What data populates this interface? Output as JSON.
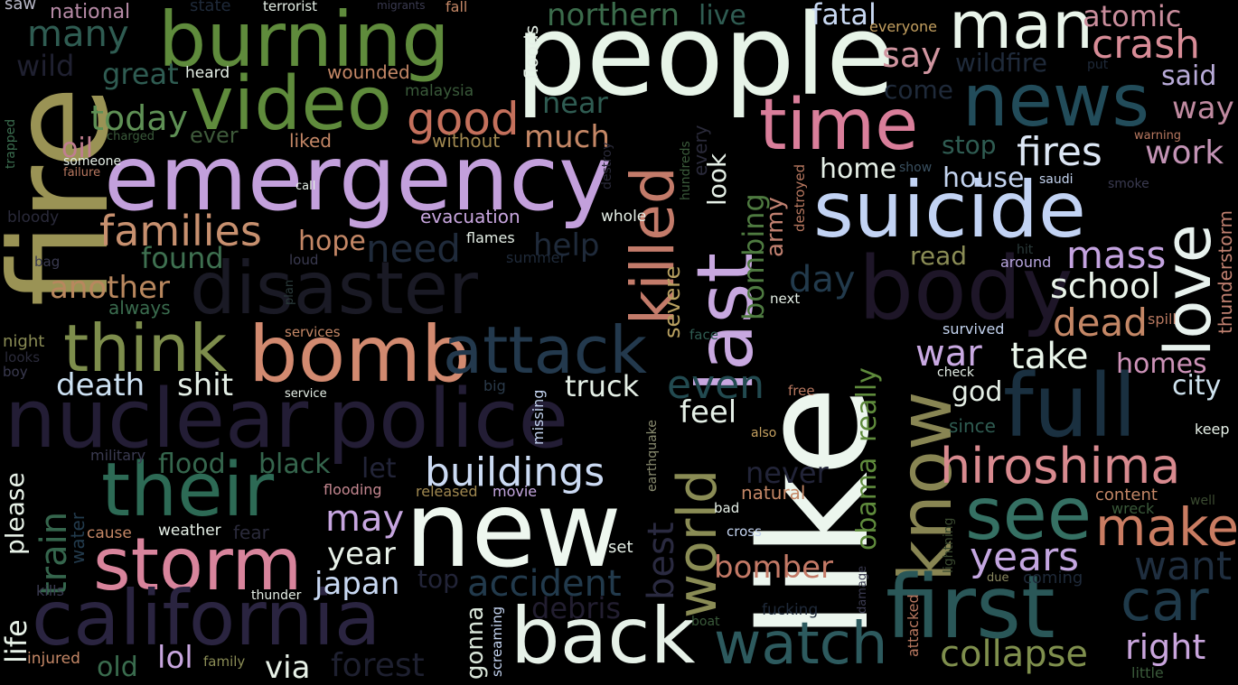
{
  "title": "",
  "palette": {
    "background": "#000000"
  },
  "words": [
    {
      "text": "fire",
      "color": "#9a9355"
    },
    {
      "text": "burning",
      "color": "#5f8b3c"
    },
    {
      "text": "people",
      "color": "#e7f4e8"
    },
    {
      "text": "man",
      "color": "#e9f4ea"
    },
    {
      "text": "atomic",
      "color": "#c98d9c"
    },
    {
      "text": "crash",
      "color": "#d88c97"
    },
    {
      "text": "said",
      "color": "#b9abd9"
    },
    {
      "text": "video",
      "color": "#5f8b3c"
    },
    {
      "text": "emergency",
      "color": "#c3a0dc"
    },
    {
      "text": "news",
      "color": "#224c5a"
    },
    {
      "text": "time",
      "color": "#d97e9a"
    },
    {
      "text": "suicide",
      "color": "#c2d3f4"
    },
    {
      "text": "love",
      "color": "#e8f2ee"
    },
    {
      "text": "disaster",
      "color": "#1a1a25"
    },
    {
      "text": "body",
      "color": "#1e1628"
    },
    {
      "text": "nuclear",
      "color": "#231d35"
    },
    {
      "text": "police",
      "color": "#231d35"
    },
    {
      "text": "like",
      "color": "#ecf6ee"
    },
    {
      "text": "full",
      "color": "#1a3040"
    },
    {
      "text": "know",
      "color": "#888553"
    },
    {
      "text": "hiroshima",
      "color": "#d88a8f"
    },
    {
      "text": "their",
      "color": "#2d6a55"
    },
    {
      "text": "new",
      "color": "#eef7ef"
    },
    {
      "text": "storm",
      "color": "#d8849c"
    },
    {
      "text": "california",
      "color": "#2a2440"
    },
    {
      "text": "back",
      "color": "#e6f1e8"
    },
    {
      "text": "first",
      "color": "#2a5758"
    },
    {
      "text": "see",
      "color": "#357063"
    },
    {
      "text": "make",
      "color": "#c97c62"
    },
    {
      "text": "car",
      "color": "#1f3a4a"
    },
    {
      "text": "bomb",
      "color": "#d28a70"
    },
    {
      "text": "attack",
      "color": "#23394d"
    },
    {
      "text": "think",
      "color": "#7d8d4c"
    },
    {
      "text": "watch",
      "color": "#2d5a5e"
    },
    {
      "text": "last",
      "color": "#c8a8e0"
    },
    {
      "text": "killed",
      "color": "#c37b6a"
    },
    {
      "text": "world",
      "color": "#8a8c55"
    },
    {
      "text": "good",
      "color": "#c4705c"
    },
    {
      "text": "families",
      "color": "#c7906f"
    },
    {
      "text": "today",
      "color": "#5f9055"
    },
    {
      "text": "fires",
      "color": "#dde7f5"
    },
    {
      "text": "work",
      "color": "#c393b5"
    },
    {
      "text": "mass",
      "color": "#c4a3e0"
    },
    {
      "text": "school",
      "color": "#eaf4ea"
    },
    {
      "text": "dead",
      "color": "#c48766"
    },
    {
      "text": "war",
      "color": "#c9a9e2"
    },
    {
      "text": "take",
      "color": "#e9f5ea"
    },
    {
      "text": "homes",
      "color": "#cd92b8"
    },
    {
      "text": "city",
      "color": "#cfe3ef"
    },
    {
      "text": "death",
      "color": "#cde1f2"
    },
    {
      "text": "shit",
      "color": "#e4efe6"
    },
    {
      "text": "buildings",
      "color": "#cbdaf3"
    },
    {
      "text": "truck",
      "color": "#e4efe6"
    },
    {
      "text": "feel",
      "color": "#e4efe6"
    },
    {
      "text": "even",
      "color": "#224a50"
    },
    {
      "text": "years",
      "color": "#c4a6e0"
    },
    {
      "text": "want",
      "color": "#1f2e3f"
    },
    {
      "text": "right",
      "color": "#c9a5dd"
    },
    {
      "text": "collapse",
      "color": "#7f8f4d"
    },
    {
      "text": "bomber",
      "color": "#c37966"
    },
    {
      "text": "accident",
      "color": "#223a4c"
    },
    {
      "text": "japan",
      "color": "#c8d8f2"
    },
    {
      "text": "year",
      "color": "#e8f1e8"
    },
    {
      "text": "may",
      "color": "#c7a6e0"
    },
    {
      "text": "train",
      "color": "#35664d"
    },
    {
      "text": "please",
      "color": "#e8f2e8"
    },
    {
      "text": "life",
      "color": "#e8f2e8"
    },
    {
      "text": "forest",
      "color": "#1e2030"
    },
    {
      "text": "via",
      "color": "#e8f2e8"
    },
    {
      "text": "lol",
      "color": "#c8a6df"
    },
    {
      "text": "old",
      "color": "#3a6c4e"
    },
    {
      "text": "gonna",
      "color": "#d9e5d9"
    },
    {
      "text": "debris",
      "color": "#221e30"
    },
    {
      "text": "top",
      "color": "#222438"
    },
    {
      "text": "flood",
      "color": "#35664d"
    },
    {
      "text": "black",
      "color": "#35664d"
    },
    {
      "text": "let",
      "color": "#222438"
    },
    {
      "text": "never",
      "color": "#222438"
    },
    {
      "text": "best",
      "color": "#2a2a40"
    },
    {
      "text": "obama",
      "color": "#5f8b3c"
    },
    {
      "text": "really",
      "color": "#5f8b3c"
    },
    {
      "text": "severe",
      "color": "#b8a060"
    },
    {
      "text": "bombing",
      "color": "#4e7a40"
    },
    {
      "text": "army",
      "color": "#c08070"
    },
    {
      "text": "day",
      "color": "#223a4c"
    },
    {
      "text": "god",
      "color": "#e5efe6"
    },
    {
      "text": "look",
      "color": "#e5efe6"
    },
    {
      "text": "hope",
      "color": "#c48766"
    },
    {
      "text": "found",
      "color": "#3e7050"
    },
    {
      "text": "another",
      "color": "#b8875e"
    },
    {
      "text": "need",
      "color": "#1f2a3a"
    },
    {
      "text": "help",
      "color": "#1f2a3a"
    },
    {
      "text": "much",
      "color": "#c48766"
    },
    {
      "text": "near",
      "color": "#2f5c52"
    },
    {
      "text": "northern",
      "color": "#3b6b4b"
    },
    {
      "text": "live",
      "color": "#2f5c52"
    },
    {
      "text": "fatal",
      "color": "#c8d8f2"
    },
    {
      "text": "say",
      "color": "#d095a0"
    },
    {
      "text": "wildfire",
      "color": "#1f2a3a"
    },
    {
      "text": "come",
      "color": "#1f2a3a"
    },
    {
      "text": "way",
      "color": "#c08aa0"
    },
    {
      "text": "stop",
      "color": "#2f5c52"
    },
    {
      "text": "home",
      "color": "#e5efe6"
    },
    {
      "text": "house",
      "color": "#c3d3ef"
    },
    {
      "text": "read",
      "color": "#8a8c55"
    },
    {
      "text": "thunderstorm",
      "color": "#c08070"
    },
    {
      "text": "many",
      "color": "#2f5c52"
    },
    {
      "text": "great",
      "color": "#2f5c52"
    },
    {
      "text": "wild",
      "color": "#1f2030"
    },
    {
      "text": "oil",
      "color": "#c07e90"
    },
    {
      "text": "ever",
      "color": "#3e5a3a"
    },
    {
      "text": "evacuation",
      "color": "#c8a6df"
    },
    {
      "text": "flames",
      "color": "#e5efe6"
    },
    {
      "text": "whole",
      "color": "#e5efe6"
    },
    {
      "text": "liked",
      "color": "#c48766"
    },
    {
      "text": "without",
      "color": "#a08850"
    },
    {
      "text": "malaysia",
      "color": "#3a5a3a"
    },
    {
      "text": "wounded",
      "color": "#c48766"
    },
    {
      "text": "heard",
      "color": "#e5efe6"
    },
    {
      "text": "floods",
      "color": "#e5efe6"
    },
    {
      "text": "national",
      "color": "#b68aa6"
    },
    {
      "text": "saw",
      "color": "#b8b8c8"
    },
    {
      "text": "state",
      "color": "#1f2a3a"
    },
    {
      "text": "terrorist",
      "color": "#e5efe6"
    },
    {
      "text": "migrants",
      "color": "#3a3a50"
    },
    {
      "text": "fall",
      "color": "#c48766"
    },
    {
      "text": "everyone",
      "color": "#c4a060"
    },
    {
      "text": "put",
      "color": "#1f2a3a"
    },
    {
      "text": "warning",
      "color": "#b87860"
    },
    {
      "text": "smoke",
      "color": "#3a3a50"
    },
    {
      "text": "saudi",
      "color": "#c3d3ef"
    },
    {
      "text": "show",
      "color": "#3a5060"
    },
    {
      "text": "hit",
      "color": "#2a3a3a"
    },
    {
      "text": "around",
      "color": "#b8a6df"
    },
    {
      "text": "spill",
      "color": "#b87860"
    },
    {
      "text": "survived",
      "color": "#c3d3ef"
    },
    {
      "text": "check",
      "color": "#e5efe6"
    },
    {
      "text": "since",
      "color": "#2f5c52"
    },
    {
      "text": "keep",
      "color": "#e5efe6"
    },
    {
      "text": "content",
      "color": "#c48766"
    },
    {
      "text": "well",
      "color": "#3a4a30"
    },
    {
      "text": "wreck",
      "color": "#3a5a3a"
    },
    {
      "text": "coming",
      "color": "#1f2a3a"
    },
    {
      "text": "little",
      "color": "#3a5a3a"
    },
    {
      "text": "due",
      "color": "#8a8860"
    },
    {
      "text": "lightning",
      "color": "#3a4a30"
    },
    {
      "text": "damage",
      "color": "#3a3a50"
    },
    {
      "text": "attacked",
      "color": "#b87860"
    },
    {
      "text": "destroyed",
      "color": "#b87860"
    },
    {
      "text": "next",
      "color": "#e5efe6"
    },
    {
      "text": "natural",
      "color": "#c48766"
    },
    {
      "text": "cross",
      "color": "#c3d3ef"
    },
    {
      "text": "bad",
      "color": "#e5efe6"
    },
    {
      "text": "boat",
      "color": "#3a5a3a"
    },
    {
      "text": "fucking",
      "color": "#1f2a3a"
    },
    {
      "text": "also",
      "color": "#c4a060"
    },
    {
      "text": "free",
      "color": "#b87860"
    },
    {
      "text": "face",
      "color": "#2f5c52"
    },
    {
      "text": "every",
      "color": "#2a2a3a"
    },
    {
      "text": "hundreds",
      "color": "#3a5a3a"
    },
    {
      "text": "destroy",
      "color": "#2a2a3a"
    },
    {
      "text": "earthquake",
      "color": "#8a8c70"
    },
    {
      "text": "screaming",
      "color": "#c3d3ef"
    },
    {
      "text": "missing",
      "color": "#c3d3ef"
    },
    {
      "text": "big",
      "color": "#2a3a4a"
    },
    {
      "text": "released",
      "color": "#a08850"
    },
    {
      "text": "movie",
      "color": "#c4a6df"
    },
    {
      "text": "flooding",
      "color": "#c48790"
    },
    {
      "text": "weather",
      "color": "#e5efe6"
    },
    {
      "text": "cause",
      "color": "#c48766"
    },
    {
      "text": "fear",
      "color": "#2a2a3a"
    },
    {
      "text": "thunder",
      "color": "#e5efe6"
    },
    {
      "text": "set",
      "color": "#e5efe6"
    },
    {
      "text": "family",
      "color": "#8a8c55"
    },
    {
      "text": "injured",
      "color": "#c48766"
    },
    {
      "text": "water",
      "color": "#223a4c"
    },
    {
      "text": "military",
      "color": "#3a3a50"
    },
    {
      "text": "kills",
      "color": "#3a3a50"
    },
    {
      "text": "service",
      "color": "#e5efe6"
    },
    {
      "text": "services",
      "color": "#c48766"
    },
    {
      "text": "plan",
      "color": "#2a3a3a"
    },
    {
      "text": "summer",
      "color": "#1f2a3a"
    },
    {
      "text": "loud",
      "color": "#3a3a50"
    },
    {
      "text": "always",
      "color": "#3a6c4e"
    },
    {
      "text": "night",
      "color": "#8a8c55"
    },
    {
      "text": "looks",
      "color": "#2a2a3a"
    },
    {
      "text": "boy",
      "color": "#3a3a50"
    },
    {
      "text": "bag",
      "color": "#3a3a50"
    },
    {
      "text": "bloody",
      "color": "#2a2a3a"
    },
    {
      "text": "someone",
      "color": "#e5efe6"
    },
    {
      "text": "failure",
      "color": "#b87860"
    },
    {
      "text": "charged",
      "color": "#3a5a3a"
    },
    {
      "text": "call",
      "color": "#e5efe6"
    },
    {
      "text": "trapped",
      "color": "#3a6c4e"
    }
  ]
}
